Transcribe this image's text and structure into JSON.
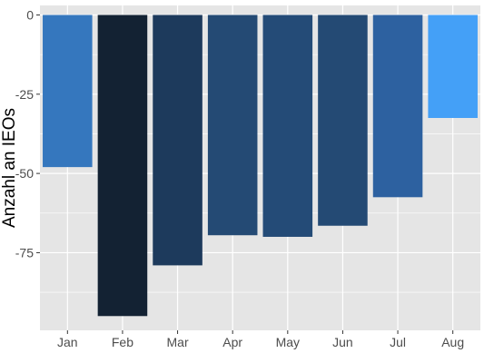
{
  "chart_data": {
    "type": "bar",
    "categories": [
      "Jan",
      "Feb",
      "Mar",
      "Apr",
      "May",
      "Jun",
      "Jul",
      "Aug"
    ],
    "values": [
      -48,
      -95,
      -79,
      -69.5,
      -70,
      -66.5,
      -57.5,
      -32.5
    ],
    "bar_colors": [
      "#3577be",
      "#132233",
      "#1d3a5c",
      "#244a74",
      "#244b77",
      "#244a74",
      "#2d61a0",
      "#44a0f7"
    ],
    "title": "",
    "xlabel": "",
    "ylabel": "Anzahl an IEOs",
    "yticks": [
      0,
      -25,
      -50,
      -75
    ],
    "ytick_labels": [
      "0",
      "-25",
      "-50",
      "-75"
    ],
    "ylim": [
      -99.5,
      3
    ],
    "grid": true,
    "legend": "none",
    "panel_background": "#e5e5e5",
    "grid_color": "#ffffff"
  }
}
